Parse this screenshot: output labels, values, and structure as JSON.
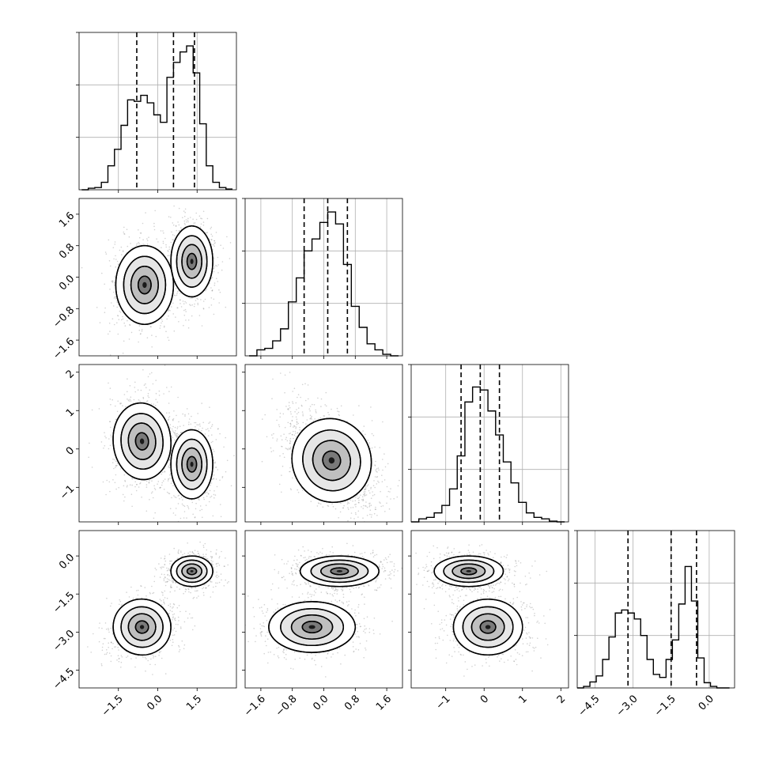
{
  "chart_data": {
    "type": "corner",
    "parameters": 4,
    "axes": [
      {
        "range": [
          -3.0,
          3.0
        ],
        "ticks": [
          -1.5,
          0.0,
          1.5
        ],
        "tick_labels": [
          "−1.5",
          "0.0",
          "1.5"
        ]
      },
      {
        "range": [
          -2.0,
          2.0
        ],
        "ticks": [
          -1.6,
          -0.8,
          0.0,
          0.8,
          1.6
        ],
        "tick_labels": [
          "−1.6",
          "−0.8",
          "0.0",
          "0.8",
          "1.6"
        ]
      },
      {
        "range": [
          -1.9,
          2.2
        ],
        "ticks": [
          -1,
          0,
          1,
          2
        ],
        "tick_labels": [
          "−1",
          "0",
          "1",
          "2"
        ]
      },
      {
        "range": [
          -5.2,
          1.0
        ],
        "ticks": [
          -4.5,
          -3.0,
          -1.5,
          0.0
        ],
        "tick_labels": [
          "−4.5",
          "−3.0",
          "−1.5",
          "0.0"
        ]
      }
    ],
    "histograms": [
      {
        "param": 0,
        "quantiles": [
          -0.8,
          0.6,
          1.4
        ],
        "bins_x": [
          -2.9,
          -2.65,
          -2.4,
          -2.15,
          -1.9,
          -1.65,
          -1.4,
          -1.15,
          -0.9,
          -0.65,
          -0.4,
          -0.15,
          0.1,
          0.35,
          0.6,
          0.85,
          1.1,
          1.35,
          1.6,
          1.85,
          2.1,
          2.35,
          2.6,
          2.85
        ],
        "heights": [
          0.0,
          0.01,
          0.015,
          0.05,
          0.16,
          0.27,
          0.43,
          0.6,
          0.59,
          0.63,
          0.58,
          0.5,
          0.45,
          0.75,
          0.85,
          0.92,
          0.96,
          0.78,
          0.44,
          0.16,
          0.05,
          0.015,
          0.005
        ]
      },
      {
        "param": 1,
        "quantiles": [
          -0.5,
          0.1,
          0.6
        ],
        "bins_x": [
          -1.9,
          -1.7,
          -1.5,
          -1.3,
          -1.1,
          -0.9,
          -0.7,
          -0.5,
          -0.3,
          -0.1,
          0.1,
          0.3,
          0.5,
          0.7,
          0.9,
          1.1,
          1.3,
          1.5,
          1.7,
          1.9
        ],
        "heights": [
          0.0,
          0.04,
          0.05,
          0.1,
          0.18,
          0.36,
          0.52,
          0.7,
          0.78,
          0.89,
          0.96,
          0.88,
          0.61,
          0.33,
          0.19,
          0.08,
          0.04,
          0.01,
          0.0
        ]
      },
      {
        "param": 2,
        "quantiles": [
          -0.6,
          -0.1,
          0.4
        ],
        "bins_x": [
          -1.9,
          -1.7,
          -1.5,
          -1.3,
          -1.1,
          -0.9,
          -0.7,
          -0.5,
          -0.3,
          -0.1,
          0.1,
          0.3,
          0.5,
          0.7,
          0.9,
          1.1,
          1.3,
          1.5,
          1.7,
          1.9,
          2.1
        ],
        "heights": [
          0.0,
          0.02,
          0.03,
          0.06,
          0.11,
          0.22,
          0.44,
          0.8,
          0.9,
          0.88,
          0.74,
          0.58,
          0.4,
          0.26,
          0.13,
          0.06,
          0.03,
          0.02,
          0.005,
          0.0
        ]
      },
      {
        "param": 3,
        "quantiles": [
          -3.2,
          -1.5,
          -0.5
        ],
        "bins_x": [
          -5.2,
          -4.95,
          -4.7,
          -4.45,
          -4.2,
          -3.95,
          -3.7,
          -3.45,
          -3.2,
          -2.95,
          -2.7,
          -2.45,
          -2.2,
          -1.95,
          -1.7,
          -1.45,
          -1.2,
          -0.95,
          -0.7,
          -0.45,
          -0.2,
          0.05,
          0.3,
          0.55,
          0.8
        ],
        "heights": [
          0.0,
          0.01,
          0.04,
          0.08,
          0.19,
          0.34,
          0.5,
          0.52,
          0.5,
          0.46,
          0.35,
          0.19,
          0.09,
          0.07,
          0.19,
          0.32,
          0.56,
          0.81,
          0.58,
          0.2,
          0.035,
          0.01,
          0.0,
          0.0
        ]
      }
    ],
    "scatter_panels": [
      {
        "x_param": 0,
        "y_param": 1,
        "modes": [
          {
            "center": [
              -0.5,
              -0.2
            ],
            "sigma": [
              0.55,
              0.5
            ],
            "rho": 0.0
          },
          {
            "center": [
              1.3,
              0.4
            ],
            "sigma": [
              0.4,
              0.45
            ],
            "rho": 0.0
          }
        ]
      },
      {
        "x_param": 0,
        "y_param": 2,
        "modes": [
          {
            "center": [
              -0.6,
              0.2
            ],
            "sigma": [
              0.55,
              0.5
            ],
            "rho": -0.1
          },
          {
            "center": [
              1.3,
              -0.4
            ],
            "sigma": [
              0.4,
              0.45
            ],
            "rho": 0.0
          }
        ]
      },
      {
        "x_param": 1,
        "y_param": 2,
        "modes": [
          {
            "center": [
              0.2,
              -0.3
            ],
            "sigma": [
              0.5,
              0.55
            ],
            "rho": -0.45
          }
        ]
      },
      {
        "x_param": 0,
        "y_param": 3,
        "modes": [
          {
            "center": [
              -0.6,
              -2.8
            ],
            "sigma": [
              0.55,
              0.55
            ],
            "rho": 0.2
          },
          {
            "center": [
              1.3,
              -0.6
            ],
            "sigma": [
              0.4,
              0.3
            ],
            "rho": 0.0
          }
        ]
      },
      {
        "x_param": 1,
        "y_param": 3,
        "modes": [
          {
            "center": [
              -0.3,
              -2.8
            ],
            "sigma": [
              0.55,
              0.5
            ],
            "rho": 0.0
          },
          {
            "center": [
              0.4,
              -0.6
            ],
            "sigma": [
              0.5,
              0.3
            ],
            "rho": 0.0
          }
        ]
      },
      {
        "x_param": 2,
        "y_param": 3,
        "modes": [
          {
            "center": [
              0.1,
              -2.8
            ],
            "sigma": [
              0.45,
              0.55
            ],
            "rho": 0.0
          },
          {
            "center": [
              -0.4,
              -0.6
            ],
            "sigma": [
              0.45,
              0.3
            ],
            "rho": 0.0
          }
        ]
      }
    ],
    "grid": true,
    "colors": {
      "line": "#000000",
      "points": "#7f7f7f",
      "grid": "#b0b0b0"
    }
  }
}
